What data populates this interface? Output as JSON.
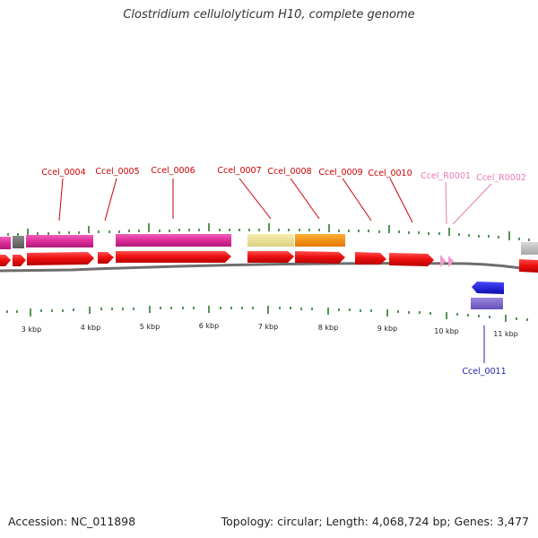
{
  "title": "Clostridium cellulolyticum H10, complete genome",
  "footer": {
    "accession": "Accession: NC_011898",
    "summary": "Topology: circular; Length: 4,068,724 bp; Genes: 3,477"
  },
  "colors": {
    "cog_band": "#dd2c9a",
    "gene_forward": "#ee1111",
    "gene_reverse": "#1111dd",
    "rna_feature": "#f29ad0",
    "tick": "#2a7a2a",
    "gene_label": "#cc0000",
    "rna_label": "#e87ab5",
    "reverse_label": "#2222aa"
  },
  "ruler": {
    "labels": [
      "3 kbp",
      "4 kbp",
      "5 kbp",
      "6 kbp",
      "7 kbp",
      "8 kbp",
      "9 kbp",
      "10 kbp",
      "11 kbp"
    ]
  },
  "genes": [
    {
      "label": "Ccel_0004",
      "kind": "cds"
    },
    {
      "label": "Ccel_0005",
      "kind": "cds"
    },
    {
      "label": "Ccel_0006",
      "kind": "cds"
    },
    {
      "label": "Ccel_0007",
      "kind": "cds"
    },
    {
      "label": "Ccel_0008",
      "kind": "cds"
    },
    {
      "label": "Ccel_0009",
      "kind": "cds"
    },
    {
      "label": "Ccel_0010",
      "kind": "cds"
    },
    {
      "label": "Ccel_R0001",
      "kind": "rna"
    },
    {
      "label": "Ccel_R0002",
      "kind": "rna"
    },
    {
      "label": "Ccel_0011",
      "kind": "cds_reverse"
    }
  ]
}
